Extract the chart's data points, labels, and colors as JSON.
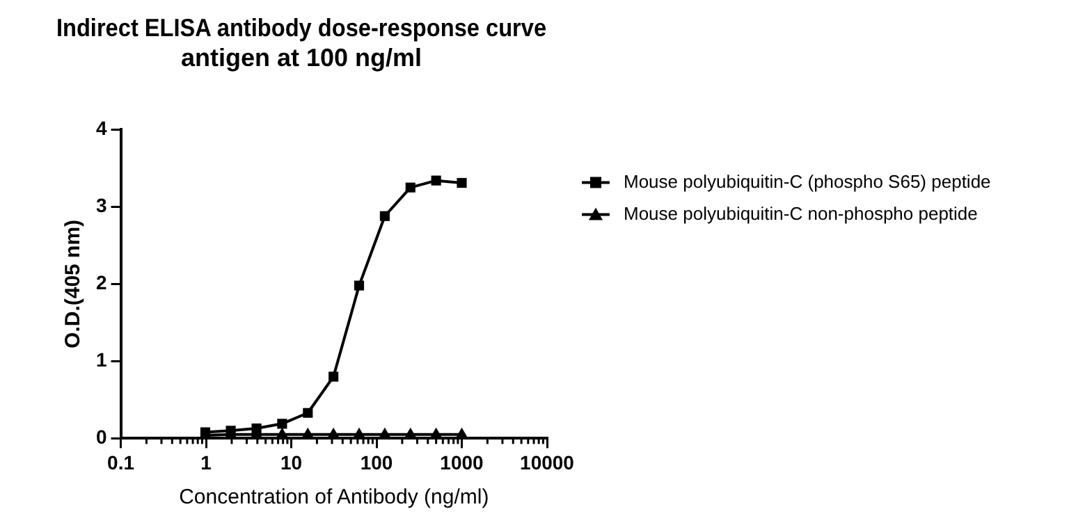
{
  "chart_data": {
    "type": "line",
    "title": "Indirect ELISA antibody dose-response curve\nantigen at 100 ng/ml",
    "xlabel": "Concentration of Antibody (ng/ml)",
    "ylabel": "O.D.(405 nm)",
    "x": [
      0.98,
      1.95,
      3.91,
      7.81,
      15.63,
      31.25,
      62.5,
      125,
      250,
      500,
      1000
    ],
    "series": [
      {
        "name": "Mouse polyubiquitin-C (phospho S65) peptide",
        "color": "#000000",
        "marker": "square",
        "values": [
          0.08,
          0.1,
          0.13,
          0.19,
          0.33,
          0.8,
          1.98,
          2.88,
          3.25,
          3.34,
          3.31
        ]
      },
      {
        "name": "Mouse polyubiquitin-C non-phospho peptide",
        "color": "#000000",
        "marker": "triangle",
        "values": [
          0.04,
          0.05,
          0.05,
          0.05,
          0.05,
          0.05,
          0.05,
          0.05,
          0.05,
          0.05,
          0.05
        ]
      }
    ],
    "log": "x",
    "xlim": [
      0.1,
      10000
    ],
    "xticks": [
      0.1,
      1,
      10,
      100,
      1000,
      10000
    ],
    "ylim": [
      0,
      4
    ],
    "yticks": [
      0,
      1,
      2,
      3,
      4
    ],
    "grid": false,
    "legend": "right",
    "line_style": "solid"
  }
}
